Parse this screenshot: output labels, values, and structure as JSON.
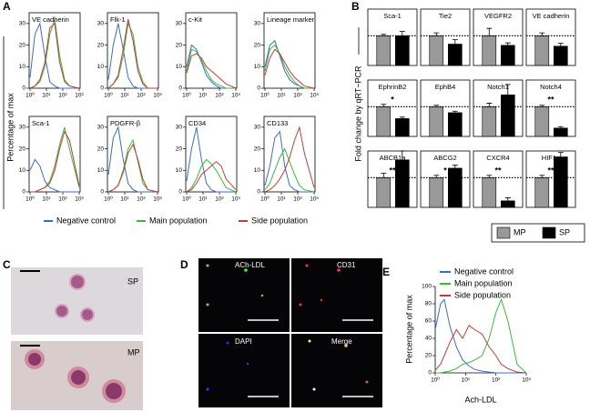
{
  "chart_data": [
    {
      "type": "line",
      "label": "A",
      "ylabel": "Percentage of max",
      "x": [
        1,
        2,
        4,
        8,
        16,
        32,
        64,
        128,
        256,
        1000
      ],
      "log_x": true,
      "xlim": [
        1,
        1000
      ],
      "xticks": [
        {
          "value": 1,
          "label": "10⁰"
        },
        {
          "value": 10,
          "label": "10¹"
        },
        {
          "value": 100,
          "label": "10²"
        },
        {
          "value": 1000,
          "label": "10³"
        }
      ],
      "ylim": [
        0,
        35
      ],
      "yticks": [
        0,
        10,
        20,
        30
      ],
      "legend": [
        {
          "name": "Negative control",
          "color": "#3b6cc5"
        },
        {
          "name": "Main population",
          "color": "#3cb83c"
        },
        {
          "name": "Side population",
          "color": "#c23a3a"
        }
      ],
      "panels": [
        {
          "title": "VE cadherin",
          "series": [
            [
              5,
              25,
              30,
              15,
              3,
              1,
              0,
              0,
              0,
              0
            ],
            [
              0,
              1,
              3,
              10,
              25,
              32,
              15,
              4,
              1,
              0
            ],
            [
              0,
              1,
              4,
              12,
              28,
              30,
              12,
              3,
              1,
              0
            ]
          ]
        },
        {
          "title": "Flk-1",
          "series": [
            [
              4,
              20,
              30,
              18,
              5,
              1,
              0,
              0,
              0,
              0
            ],
            [
              0,
              2,
              5,
              15,
              30,
              25,
              10,
              3,
              0,
              0
            ],
            [
              0,
              2,
              6,
              18,
              32,
              22,
              8,
              2,
              0,
              0
            ]
          ]
        },
        {
          "title": "c-Kit",
          "series": [
            [
              10,
              20,
              18,
              12,
              6,
              3,
              1,
              0,
              0,
              0
            ],
            [
              8,
              18,
              17,
              13,
              8,
              4,
              2,
              1,
              0,
              0
            ],
            [
              7,
              15,
              16,
              14,
              10,
              8,
              6,
              4,
              2,
              0
            ]
          ]
        },
        {
          "title": "Lineage marker",
          "series": [
            [
              10,
              20,
              22,
              15,
              8,
              4,
              2,
              1,
              0,
              0
            ],
            [
              8,
              18,
              20,
              16,
              10,
              6,
              3,
              1,
              0,
              0
            ],
            [
              6,
              14,
              18,
              16,
              12,
              8,
              5,
              3,
              1,
              0
            ]
          ]
        },
        {
          "title": "Sca-1",
          "series": [
            [
              10,
              15,
              12,
              5,
              2,
              1,
              0,
              0,
              0,
              0
            ],
            [
              0,
              0,
              1,
              2,
              5,
              12,
              22,
              30,
              20,
              2
            ],
            [
              0,
              0,
              1,
              2,
              4,
              10,
              20,
              28,
              24,
              3
            ]
          ]
        },
        {
          "title": "PDGFR-β",
          "series": [
            [
              8,
              25,
              30,
              15,
              4,
              1,
              0,
              0,
              0,
              0
            ],
            [
              0,
              1,
              3,
              10,
              20,
              24,
              14,
              4,
              1,
              0
            ],
            [
              0,
              1,
              3,
              9,
              18,
              22,
              15,
              6,
              1,
              0
            ]
          ]
        },
        {
          "title": "CD34",
          "series": [
            [
              5,
              20,
              30,
              15,
              4,
              1,
              0,
              0,
              0,
              0
            ],
            [
              0,
              2,
              6,
              12,
              15,
              13,
              10,
              6,
              2,
              0
            ],
            [
              0,
              1,
              4,
              8,
              10,
              12,
              14,
              12,
              6,
              1
            ]
          ]
        },
        {
          "title": "CD133",
          "series": [
            [
              3,
              12,
              25,
              28,
              12,
              3,
              1,
              0,
              0,
              0
            ],
            [
              1,
              4,
              10,
              16,
              20,
              14,
              8,
              3,
              1,
              0
            ],
            [
              0,
              1,
              3,
              6,
              10,
              16,
              24,
              30,
              18,
              2
            ]
          ]
        }
      ]
    },
    {
      "type": "bar",
      "label": "B",
      "ylabel": "Fold change  by qRT−PCR",
      "ylim": [
        0,
        1.9
      ],
      "reference": 1,
      "series": [
        {
          "name": "MP",
          "color": "#999999"
        },
        {
          "name": "SP",
          "color": "#000000"
        }
      ],
      "panels": [
        {
          "title": "Sca-1",
          "values": [
            1.0,
            1.0
          ],
          "errors": [
            0.05,
            0.15
          ]
        },
        {
          "title": "Tie2",
          "values": [
            1.0,
            0.72
          ],
          "errors": [
            0.1,
            0.15
          ]
        },
        {
          "title": "VEGFR2",
          "values": [
            1.0,
            0.68
          ],
          "errors": [
            0.25,
            0.08
          ]
        },
        {
          "title": "VE cadherin",
          "values": [
            1.0,
            0.65
          ],
          "errors": [
            0.1,
            0.1
          ]
        },
        {
          "title": "EphrinB2",
          "values": [
            1.0,
            0.6
          ],
          "errors": [
            0.08,
            0.05
          ],
          "annotation": "*"
        },
        {
          "title": "EphB4",
          "values": [
            1.0,
            0.8
          ],
          "errors": [
            0.05,
            0.05
          ]
        },
        {
          "title": "Notch1",
          "values": [
            1.0,
            1.4
          ],
          "errors": [
            0.12,
            0.35
          ]
        },
        {
          "title": "Notch4",
          "values": [
            1.0,
            0.28
          ],
          "errors": [
            0.05,
            0.05
          ],
          "annotation": "**"
        },
        {
          "title": "ABCB1a",
          "values": [
            1.0,
            1.6
          ],
          "errors": [
            0.15,
            0.3
          ],
          "annotation": "**"
        },
        {
          "title": "ABCG2",
          "values": [
            1.0,
            1.32
          ],
          "errors": [
            0.08,
            0.1
          ],
          "annotation": "*"
        },
        {
          "title": "CXCR4",
          "values": [
            1.0,
            0.22
          ],
          "errors": [
            0.08,
            0.1
          ],
          "annotation": "**"
        },
        {
          "title": "HIF1a",
          "values": [
            1.0,
            1.7
          ],
          "errors": [
            0.08,
            0.15
          ],
          "annotation": "**"
        }
      ]
    },
    {
      "type": "line",
      "label": "E",
      "ylabel": "Percentage of max",
      "xlabel": "Ach-LDL",
      "x": [
        1,
        1.5,
        2,
        3,
        5,
        8,
        13,
        20,
        35,
        60,
        100,
        150,
        250,
        500,
        1000
      ],
      "log_x": true,
      "xlim": [
        1,
        1000
      ],
      "xticks": [
        {
          "value": 1,
          "label": "10⁰"
        },
        {
          "value": 10,
          "label": "10¹"
        },
        {
          "value": 100,
          "label": "10²"
        },
        {
          "value": 1000,
          "label": "10³"
        }
      ],
      "ylim": [
        0,
        100
      ],
      "yticks": [
        0,
        20,
        40,
        60,
        80,
        100
      ],
      "series": [
        {
          "name": "Negative control",
          "color": "#3b6cc5",
          "values": [
            50,
            80,
            85,
            55,
            30,
            15,
            8,
            4,
            2,
            1,
            0,
            0,
            0,
            0,
            0
          ]
        },
        {
          "name": "Main population",
          "color": "#3cb83c",
          "values": [
            0,
            0,
            1,
            2,
            5,
            10,
            12,
            15,
            20,
            40,
            70,
            85,
            60,
            10,
            0
          ]
        },
        {
          "name": "Side population",
          "color": "#c23a3a",
          "values": [
            3,
            10,
            20,
            35,
            50,
            40,
            55,
            50,
            45,
            30,
            20,
            10,
            5,
            1,
            0
          ]
        }
      ]
    }
  ],
  "figure_panels": {
    "C": {
      "label": "C",
      "images": [
        "SP",
        "MP"
      ]
    },
    "D": {
      "label": "D",
      "images": [
        "ACh-LDL",
        "CD31",
        "DAPI",
        "Merge"
      ]
    }
  }
}
